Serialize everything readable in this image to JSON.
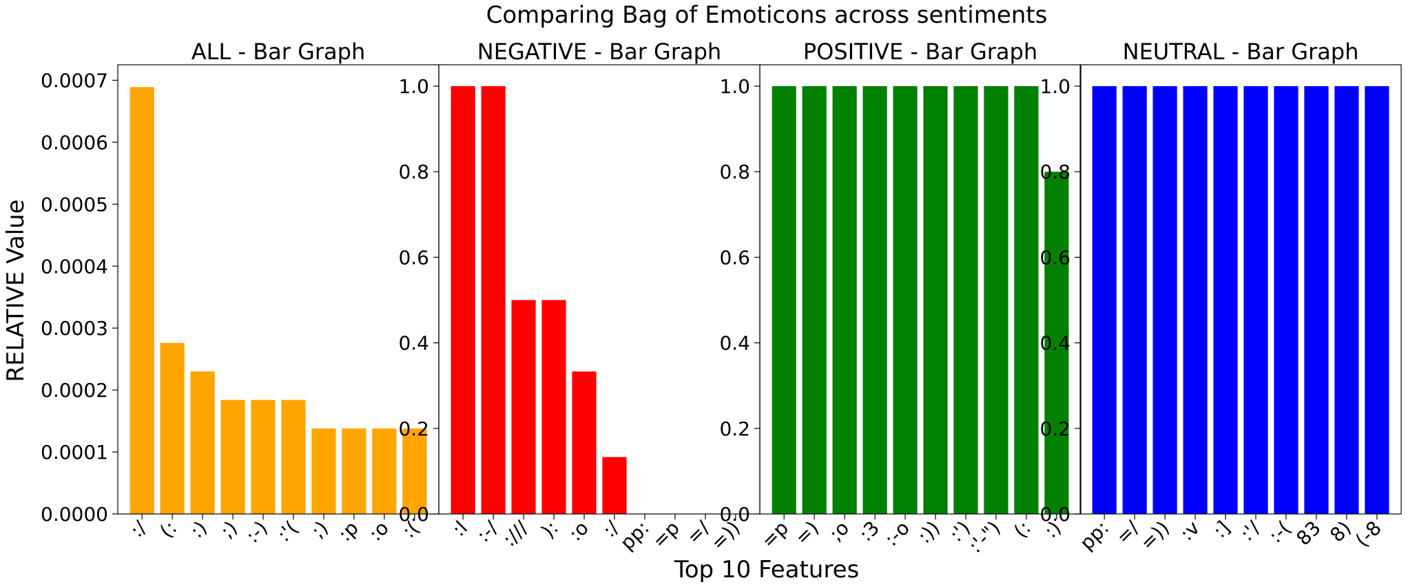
{
  "figure": {
    "suptitle": "Comparing Bag of Emoticons across sentiments",
    "xlabel": "Top 10 Features",
    "ylabel": "RELATIVE Value"
  },
  "chart_data": [
    {
      "type": "bar",
      "title": "ALL - Bar Graph",
      "color": "#ffa500",
      "categories": [
        ":/",
        "(:",
        ":)",
        ";)",
        ":-)",
        ":'(",
        ";)",
        ":p",
        ":o",
        ":("
      ],
      "values": [
        0.000689,
        0.000276,
        0.00023,
        0.000184,
        0.000184,
        0.000184,
        0.000138,
        0.000138,
        0.000138,
        0.000138
      ],
      "ylim": [
        0,
        0.000725
      ],
      "yticks": [
        0,
        0.0001,
        0.0002,
        0.0003,
        0.0004,
        0.0005,
        0.0006,
        0.0007
      ],
      "ytick_labels": [
        "0.0000",
        "0.0001",
        "0.0002",
        "0.0003",
        "0.0004",
        "0.0005",
        "0.0006",
        "0.0007"
      ]
    },
    {
      "type": "bar",
      "title": "NEGATIVE - Bar Graph",
      "color": "#ff0000",
      "categories": [
        ":l",
        ":-/",
        ":///",
        "):",
        ":o",
        ":/",
        "pp:",
        "=p",
        "=/",
        "=))"
      ],
      "values": [
        1.0,
        1.0,
        0.5,
        0.5,
        0.333,
        0.133,
        0,
        0,
        0,
        0
      ],
      "ylim": [
        0,
        1.05
      ],
      "yticks": [
        0,
        0.2,
        0.4,
        0.6,
        0.8,
        1.0
      ],
      "ytick_labels": [
        "0.0",
        "0.2",
        "0.4",
        "0.6",
        "0.8",
        "1.0"
      ]
    },
    {
      "type": "bar",
      "title": "POSITIVE - Bar Graph",
      "color": "#008000",
      "categories": [
        "=p",
        "=)",
        ";o",
        ":3",
        ":-o",
        ":))",
        ":')",
        ":'-\")",
        "(:",
        ":)"
      ],
      "values": [
        1.0,
        1.0,
        1.0,
        1.0,
        1.0,
        1.0,
        1.0,
        1.0,
        1.0,
        0.8
      ],
      "ylim": [
        0,
        1.05
      ],
      "yticks": [
        0,
        0.2,
        0.4,
        0.6,
        0.8,
        1.0
      ],
      "ytick_labels": [
        "0.0",
        "0.2",
        "0.4",
        "0.6",
        "0.8",
        "1.0"
      ]
    },
    {
      "type": "bar",
      "title": "NEUTRAL - Bar Graph",
      "color": "#0000ff",
      "categories": [
        "pp:",
        "=/",
        "=))",
        ":v",
        ":]",
        ":'/",
        ":-(",
        "83",
        "8)",
        "(-8"
      ],
      "values": [
        1.0,
        1.0,
        1.0,
        1.0,
        1.0,
        1.0,
        1.0,
        1.0,
        1.0,
        1.0
      ],
      "ylim": [
        0,
        1.05
      ],
      "yticks": [
        0,
        0.2,
        0.4,
        0.6,
        0.8,
        1.0
      ],
      "ytick_labels": [
        "0.0",
        "0.2",
        "0.4",
        "0.6",
        "0.8",
        "1.0"
      ]
    }
  ]
}
